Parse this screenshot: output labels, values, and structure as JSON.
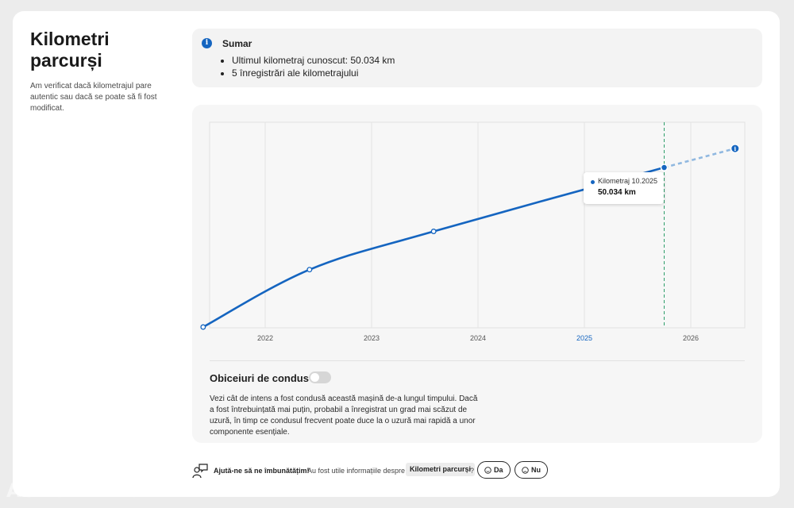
{
  "page": {
    "title": "Kilometri parcurși",
    "description": "Am verificat dacă kilometrajul pare autentic sau dacă se poate să fi fost modificat."
  },
  "summary": {
    "title": "Sumar",
    "items": [
      "Ultimul kilometraj cunoscut: 50.034 km",
      "5 înregistrări ale kilometrajului"
    ]
  },
  "chart_data": {
    "type": "line",
    "x_ticks": [
      "2022",
      "2023",
      "2024",
      "2025",
      "2026"
    ],
    "highlighted_tick": "2025",
    "points": [
      {
        "x": "2021-06",
        "y": 0
      },
      {
        "x": "2022-06",
        "y": 18000
      },
      {
        "x": "2023-08",
        "y": 30000
      },
      {
        "x": "2025-10",
        "y": 50034
      }
    ],
    "projection": {
      "x": "2026-06",
      "y": 56000
    },
    "current_marker": "2025-10",
    "grid": "vertical",
    "colors": {
      "line": "#1565c0",
      "projection": "#90b8e0",
      "marker": "#2e9e6a"
    }
  },
  "tooltip": {
    "label": "Kilometraj 10.2025",
    "value": "50.034 km"
  },
  "habits": {
    "title": "Obiceiuri de condus",
    "toggle_on": false,
    "text": "Vezi cât de intens a fost condusă această mașină de-a lungul timpului. Dacă a fost întrebuințată mai puțin, probabil a înregistrat un grad mai scăzut de uzură, în timp ce condusul frecvent poate duce la o uzură mai rapidă a unor componente esențiale."
  },
  "feedback": {
    "help": "Ajută-ne să ne îmbunătățim!",
    "question": "Au fost utile informațiile despre",
    "topic": "Kilometri parcurși",
    "qmark": "?",
    "yes": "Da",
    "no": "Nu"
  },
  "watermark": "AUTOVIT.RO"
}
